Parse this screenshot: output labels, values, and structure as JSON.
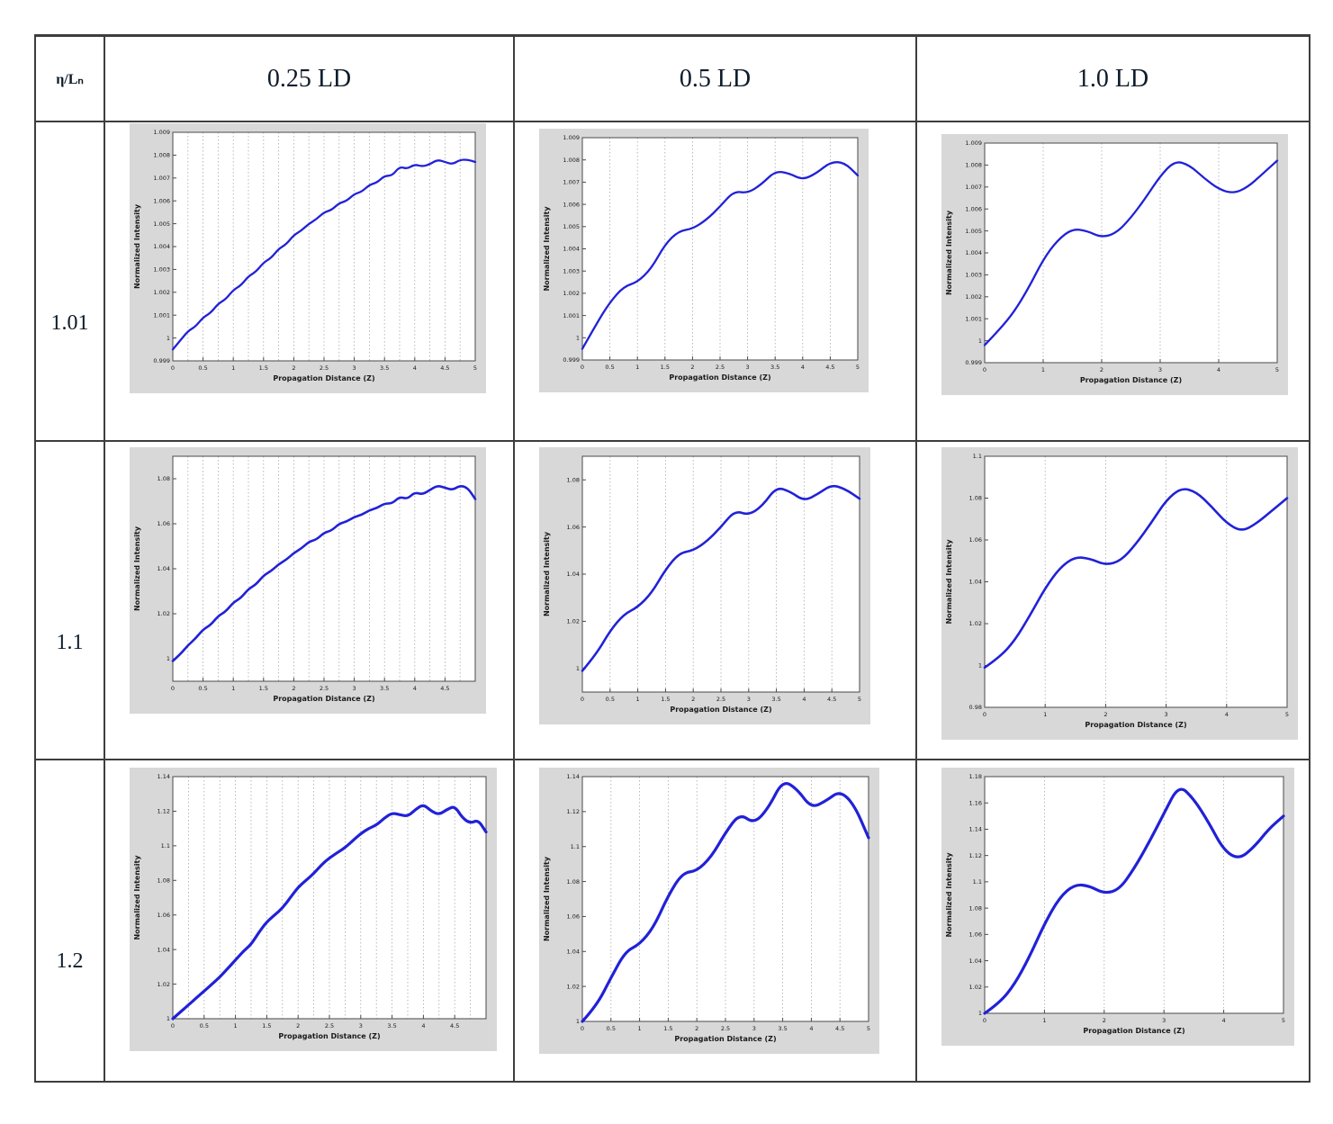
{
  "colors": {
    "curve": "#2121d8",
    "figure_bg": "#d8d8d8",
    "plot_bg": "#ffffff",
    "grid": "#a8a8a8",
    "axis": "#4a4a4a",
    "text": "#1a1a1a",
    "table_border": "#3d3d3d"
  },
  "table": {
    "corner_label": "η/Lₙ",
    "columns": [
      "0.25 LD",
      "0.5 LD",
      "1.0 LD"
    ],
    "rows": [
      "1.01",
      "1.1",
      "1.2"
    ]
  },
  "chart_data": [
    {
      "id": "r1c1",
      "type": "line",
      "row": "1.01",
      "column": "0.25 LD",
      "xlabel": "Propagation Distance (Z)",
      "ylabel": "Normalized Intensity",
      "xlim": [
        0,
        5
      ],
      "ylim": [
        0.999,
        1.009
      ],
      "grid_step": 0.25,
      "line_width": 2.3,
      "xticks": [
        0,
        0.5,
        1,
        1.5,
        2,
        2.5,
        3,
        3.5,
        4,
        4.5,
        5
      ],
      "xtick_labels": [
        "0",
        "0.5",
        "1",
        "1.5",
        "2",
        "2.5",
        "3",
        "3.5",
        "4",
        "4.5",
        "5"
      ],
      "yticks": [
        0.999,
        1,
        1.001,
        1.002,
        1.003,
        1.004,
        1.005,
        1.006,
        1.007,
        1.008,
        1.009
      ],
      "ytick_labels": [
        "0.999",
        "1",
        "1.001",
        "1.002",
        "1.003",
        "1.004",
        "1.005",
        "1.006",
        "1.007",
        "1.008",
        "1.009"
      ],
      "x": [
        0,
        0.125,
        0.25,
        0.375,
        0.5,
        0.625,
        0.75,
        0.875,
        1,
        1.125,
        1.25,
        1.375,
        1.5,
        1.625,
        1.75,
        1.875,
        2,
        2.125,
        2.25,
        2.375,
        2.5,
        2.625,
        2.75,
        2.875,
        3,
        3.125,
        3.25,
        3.375,
        3.5,
        3.625,
        3.75,
        3.875,
        4,
        4.125,
        4.25,
        4.375,
        4.5,
        4.625,
        4.75,
        4.875,
        5
      ],
      "y": [
        0.9995,
        0.9999,
        1.0003,
        1.0005,
        1.0009,
        1.0011,
        1.0015,
        1.0017,
        1.0021,
        1.0023,
        1.0027,
        1.0029,
        1.0033,
        1.0035,
        1.0039,
        1.0041,
        1.0045,
        1.0047,
        1.005,
        1.0052,
        1.0055,
        1.0056,
        1.0059,
        1.006,
        1.0063,
        1.0064,
        1.0067,
        1.0068,
        1.0071,
        1.0071,
        1.0075,
        1.0074,
        1.0076,
        1.0075,
        1.0076,
        1.0078,
        1.0077,
        1.0076,
        1.0078,
        1.0078,
        1.0077
      ]
    },
    {
      "id": "r1c2",
      "type": "line",
      "row": "1.01",
      "column": "0.5 LD",
      "xlabel": "Propagation Distance (Z)",
      "ylabel": "Normalized Intensity",
      "xlim": [
        0,
        5
      ],
      "ylim": [
        0.999,
        1.009
      ],
      "grid_step": 0.5,
      "line_width": 2.3,
      "xticks": [
        0,
        0.5,
        1,
        1.5,
        2,
        2.5,
        3,
        3.5,
        4,
        4.5,
        5
      ],
      "xtick_labels": [
        "0",
        "0.5",
        "1",
        "1.5",
        "2",
        "2.5",
        "3",
        "3.5",
        "4",
        "4.5",
        "5"
      ],
      "yticks": [
        0.999,
        1,
        1.001,
        1.002,
        1.003,
        1.004,
        1.005,
        1.006,
        1.007,
        1.008,
        1.009
      ],
      "ytick_labels": [
        "0.999",
        "1",
        "1.001",
        "1.002",
        "1.003",
        "1.004",
        "1.005",
        "1.006",
        "1.007",
        "1.008",
        "1.009"
      ],
      "x": [
        0,
        0.25,
        0.5,
        0.75,
        1,
        1.25,
        1.5,
        1.75,
        2,
        2.25,
        2.5,
        2.75,
        3,
        3.25,
        3.5,
        3.75,
        4,
        4.25,
        4.5,
        4.75,
        5
      ],
      "y": [
        0.9995,
        1.0006,
        1.0016,
        1.0023,
        1.0025,
        1.0031,
        1.0042,
        1.0048,
        1.0049,
        1.0053,
        1.0059,
        1.0066,
        1.0065,
        1.0069,
        1.0075,
        1.0074,
        1.0071,
        1.0074,
        1.0079,
        1.0079,
        1.0073
      ]
    },
    {
      "id": "r1c3",
      "type": "line",
      "row": "1.01",
      "column": "1.0 LD",
      "xlabel": "Propagation Distance (Z)",
      "ylabel": "Normalized Intensity",
      "xlim": [
        0,
        5
      ],
      "ylim": [
        0.999,
        1.009
      ],
      "grid_step": 1,
      "line_width": 2.3,
      "xticks": [
        0,
        1,
        2,
        3,
        4,
        5
      ],
      "xtick_labels": [
        "0",
        "1",
        "2",
        "3",
        "4",
        "5"
      ],
      "yticks": [
        0.999,
        1,
        1.001,
        1.002,
        1.003,
        1.004,
        1.005,
        1.006,
        1.007,
        1.008,
        1.009
      ],
      "ytick_labels": [
        "0.999",
        "1",
        "1.001",
        "1.002",
        "1.003",
        "1.004",
        "1.005",
        "1.006",
        "1.007",
        "1.008",
        "1.009"
      ],
      "x": [
        0,
        0.25,
        0.5,
        0.75,
        1,
        1.25,
        1.5,
        1.75,
        2,
        2.25,
        2.5,
        2.75,
        3,
        3.25,
        3.5,
        3.75,
        4,
        4.25,
        4.5,
        4.75,
        5
      ],
      "y": [
        0.9998,
        1.0005,
        1.0013,
        1.0024,
        1.0037,
        1.0046,
        1.0051,
        1.005,
        1.0047,
        1.0049,
        1.0056,
        1.0065,
        1.0075,
        1.0082,
        1.008,
        1.0074,
        1.0069,
        1.0067,
        1.007,
        1.0076,
        1.0082
      ]
    },
    {
      "id": "r2c1",
      "type": "line",
      "row": "1.1",
      "column": "0.25 LD",
      "xlabel": "Propagation Distance (Z)",
      "ylabel": "Normalized Intensity",
      "xlim": [
        0,
        5
      ],
      "ylim": [
        0.99,
        1.09
      ],
      "grid_step": 0.25,
      "line_width": 2.6,
      "xticks": [
        0,
        0.5,
        1,
        1.5,
        2,
        2.5,
        3,
        3.5,
        4,
        4.5
      ],
      "xtick_labels": [
        "0",
        "0.5",
        "1",
        "1.5",
        "2",
        "2.5",
        "3",
        "3.5",
        "4",
        "4.5"
      ],
      "yticks": [
        1,
        1.02,
        1.04,
        1.06,
        1.08
      ],
      "ytick_labels": [
        "1",
        "1.02",
        "1.04",
        "1.06",
        "1.08"
      ],
      "x": [
        0,
        0.125,
        0.25,
        0.375,
        0.5,
        0.625,
        0.75,
        0.875,
        1,
        1.125,
        1.25,
        1.375,
        1.5,
        1.625,
        1.75,
        1.875,
        2,
        2.125,
        2.25,
        2.375,
        2.5,
        2.625,
        2.75,
        2.875,
        3,
        3.125,
        3.25,
        3.375,
        3.5,
        3.625,
        3.75,
        3.875,
        4,
        4.125,
        4.25,
        4.375,
        4.5,
        4.625,
        4.75,
        4.875,
        5
      ],
      "y": [
        0.999,
        1.002,
        1.006,
        1.009,
        1.013,
        1.015,
        1.019,
        1.021,
        1.025,
        1.027,
        1.031,
        1.033,
        1.037,
        1.039,
        1.042,
        1.044,
        1.047,
        1.049,
        1.052,
        1.053,
        1.056,
        1.057,
        1.06,
        1.061,
        1.063,
        1.064,
        1.066,
        1.067,
        1.069,
        1.069,
        1.072,
        1.071,
        1.074,
        1.073,
        1.075,
        1.077,
        1.076,
        1.075,
        1.077,
        1.076,
        1.071
      ]
    },
    {
      "id": "r2c2",
      "type": "line",
      "row": "1.1",
      "column": "0.5 LD",
      "xlabel": "Propagation Distance (Z)",
      "ylabel": "Normalized Intensity",
      "xlim": [
        0,
        5
      ],
      "ylim": [
        0.99,
        1.09
      ],
      "grid_step": 0.5,
      "line_width": 2.6,
      "xticks": [
        0,
        0.5,
        1,
        1.5,
        2,
        2.5,
        3,
        3.5,
        4,
        4.5,
        5
      ],
      "xtick_labels": [
        "0",
        "0.5",
        "1",
        "1.5",
        "2",
        "2.5",
        "3",
        "3.5",
        "4",
        "4.5",
        "5"
      ],
      "yticks": [
        1,
        1.02,
        1.04,
        1.06,
        1.08
      ],
      "ytick_labels": [
        "1",
        "1.02",
        "1.04",
        "1.06",
        "1.08"
      ],
      "x": [
        0,
        0.25,
        0.5,
        0.75,
        1,
        1.25,
        1.5,
        1.75,
        2,
        2.25,
        2.5,
        2.75,
        3,
        3.25,
        3.5,
        3.75,
        4,
        4.25,
        4.5,
        4.75,
        5
      ],
      "y": [
        0.999,
        1.006,
        1.016,
        1.023,
        1.026,
        1.032,
        1.042,
        1.049,
        1.05,
        1.054,
        1.06,
        1.067,
        1.065,
        1.069,
        1.077,
        1.075,
        1.071,
        1.074,
        1.078,
        1.076,
        1.072
      ]
    },
    {
      "id": "r2c3",
      "type": "line",
      "row": "1.1",
      "column": "1.0 LD",
      "xlabel": "Propagation Distance (Z)",
      "ylabel": "Normalized Intensity",
      "xlim": [
        0,
        5
      ],
      "ylim": [
        0.98,
        1.1
      ],
      "grid_step": 1,
      "line_width": 2.6,
      "xticks": [
        0,
        1,
        2,
        3,
        4,
        5
      ],
      "xtick_labels": [
        "0",
        "1",
        "2",
        "3",
        "4",
        "5"
      ],
      "yticks": [
        0.98,
        1,
        1.02,
        1.04,
        1.06,
        1.08,
        1.1
      ],
      "ytick_labels": [
        "0.98",
        "1",
        "1.02",
        "1.04",
        "1.06",
        "1.08",
        "1.1"
      ],
      "x": [
        0,
        0.25,
        0.5,
        0.75,
        1,
        1.25,
        1.5,
        1.75,
        2,
        2.25,
        2.5,
        2.75,
        3,
        3.25,
        3.5,
        3.75,
        4,
        4.25,
        4.5,
        4.75,
        5
      ],
      "y": [
        0.999,
        1.004,
        1.012,
        1.024,
        1.037,
        1.047,
        1.052,
        1.051,
        1.048,
        1.05,
        1.058,
        1.068,
        1.079,
        1.085,
        1.083,
        1.076,
        1.068,
        1.064,
        1.068,
        1.074,
        1.08
      ]
    },
    {
      "id": "r3c1",
      "type": "line",
      "row": "1.2",
      "column": "0.25 LD",
      "xlabel": "Propagation Distance (Z)",
      "ylabel": "Normalized Intensity",
      "xlim": [
        0,
        5
      ],
      "ylim": [
        1,
        1.14
      ],
      "grid_step": 0.25,
      "line_width": 3.2,
      "xticks": [
        0,
        0.5,
        1,
        1.5,
        2,
        2.5,
        3,
        3.5,
        4,
        4.5
      ],
      "xtick_labels": [
        "0",
        "0.5",
        "1",
        "1.5",
        "2",
        "2.5",
        "3",
        "3.5",
        "4",
        "4.5"
      ],
      "yticks": [
        1,
        1.02,
        1.04,
        1.06,
        1.08,
        1.1,
        1.12,
        1.14
      ],
      "ytick_labels": [
        "1",
        "1.02",
        "1.04",
        "1.06",
        "1.08",
        "1.1",
        "1.12",
        "1.14"
      ],
      "x": [
        0,
        0.125,
        0.25,
        0.375,
        0.5,
        0.625,
        0.75,
        0.875,
        1,
        1.125,
        1.25,
        1.375,
        1.5,
        1.625,
        1.75,
        1.875,
        2,
        2.125,
        2.25,
        2.375,
        2.5,
        2.625,
        2.75,
        2.875,
        3,
        3.125,
        3.25,
        3.375,
        3.5,
        3.625,
        3.75,
        3.875,
        4,
        4.125,
        4.25,
        4.375,
        4.5,
        4.625,
        4.75,
        4.875,
        5
      ],
      "y": [
        1,
        1.004,
        1.008,
        1.012,
        1.016,
        1.02,
        1.024,
        1.029,
        1.034,
        1.039,
        1.043,
        1.05,
        1.056,
        1.06,
        1.064,
        1.07,
        1.076,
        1.08,
        1.084,
        1.089,
        1.093,
        1.096,
        1.099,
        1.103,
        1.107,
        1.11,
        1.112,
        1.116,
        1.119,
        1.118,
        1.117,
        1.121,
        1.124,
        1.12,
        1.118,
        1.121,
        1.123,
        1.116,
        1.113,
        1.115,
        1.108
      ]
    },
    {
      "id": "r3c2",
      "type": "line",
      "row": "1.2",
      "column": "0.5 LD",
      "xlabel": "Propagation Distance (Z)",
      "ylabel": "Normalized Intensity",
      "xlim": [
        0,
        5
      ],
      "ylim": [
        1,
        1.14
      ],
      "grid_step": 0.5,
      "line_width": 3.2,
      "xticks": [
        0,
        0.5,
        1,
        1.5,
        2,
        2.5,
        3,
        3.5,
        4,
        4.5,
        5
      ],
      "xtick_labels": [
        "0",
        "0.5",
        "1",
        "1.5",
        "2",
        "2.5",
        "3",
        "3.5",
        "4",
        "4.5",
        "5"
      ],
      "yticks": [
        1,
        1.02,
        1.04,
        1.06,
        1.08,
        1.1,
        1.12,
        1.14
      ],
      "ytick_labels": [
        "1",
        "1.02",
        "1.04",
        "1.06",
        "1.08",
        "1.1",
        "1.12",
        "1.14"
      ],
      "x": [
        0,
        0.25,
        0.5,
        0.75,
        1,
        1.25,
        1.5,
        1.75,
        2,
        2.25,
        2.5,
        2.75,
        3,
        3.25,
        3.5,
        3.75,
        4,
        4.25,
        4.5,
        4.75,
        5
      ],
      "y": [
        1,
        1.009,
        1.025,
        1.04,
        1.044,
        1.054,
        1.072,
        1.085,
        1.086,
        1.094,
        1.108,
        1.119,
        1.113,
        1.122,
        1.138,
        1.133,
        1.122,
        1.126,
        1.132,
        1.124,
        1.105
      ]
    },
    {
      "id": "r3c3",
      "type": "line",
      "row": "1.2",
      "column": "1.0 LD",
      "xlabel": "Propagation Distance (Z)",
      "ylabel": "Normalized Intensity",
      "xlim": [
        0,
        5
      ],
      "ylim": [
        1,
        1.18
      ],
      "grid_step": 1,
      "line_width": 3.2,
      "xticks": [
        0,
        1,
        2,
        3,
        4,
        5
      ],
      "xtick_labels": [
        "0",
        "1",
        "2",
        "3",
        "4",
        "5"
      ],
      "yticks": [
        1,
        1.02,
        1.04,
        1.06,
        1.08,
        1.1,
        1.12,
        1.14,
        1.16,
        1.18
      ],
      "ytick_labels": [
        "1",
        "1.02",
        "1.04",
        "1.06",
        "1.08",
        "1.1",
        "1.12",
        "1.14",
        "1.16",
        "1.18"
      ],
      "x": [
        0,
        0.25,
        0.5,
        0.75,
        1,
        1.25,
        1.5,
        1.75,
        2,
        2.25,
        2.5,
        2.75,
        3,
        3.25,
        3.5,
        3.75,
        4,
        4.25,
        4.5,
        4.75,
        5
      ],
      "y": [
        1,
        1.008,
        1.022,
        1.043,
        1.068,
        1.088,
        1.098,
        1.097,
        1.091,
        1.094,
        1.11,
        1.13,
        1.152,
        1.174,
        1.163,
        1.145,
        1.124,
        1.117,
        1.126,
        1.14,
        1.15
      ]
    }
  ]
}
